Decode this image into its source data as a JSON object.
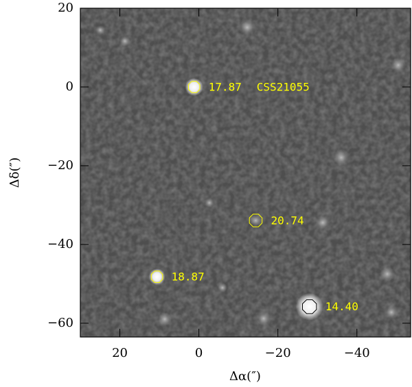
{
  "chart_data": {
    "type": "scatter",
    "xlabel": "Δα(″)",
    "ylabel": "Δδ(″)",
    "xlim": [
      30,
      -53.6
    ],
    "ylim": [
      -63.5,
      20
    ],
    "xticks": [
      20,
      0,
      {
        "value": -20,
        "label": "−20"
      },
      {
        "value": -40,
        "label": "−40"
      }
    ],
    "yticks": [
      20,
      0,
      {
        "value": -20,
        "label": "−20"
      },
      {
        "value": -40,
        "label": "−40"
      },
      {
        "value": -60,
        "label": "−60"
      }
    ],
    "x": [
      1.2,
      -14.4,
      10.6,
      -28
    ],
    "y": [
      0,
      -33.9,
      -48.2,
      -55.8
    ],
    "labels": [
      "17.87",
      "20.74",
      "18.87",
      "14.40"
    ],
    "annotation": "CSS21055",
    "label_color": "#ffff00",
    "marker_colors": [
      "#ffff00",
      "#ffff00",
      "#ffff00",
      "#000000"
    ]
  }
}
